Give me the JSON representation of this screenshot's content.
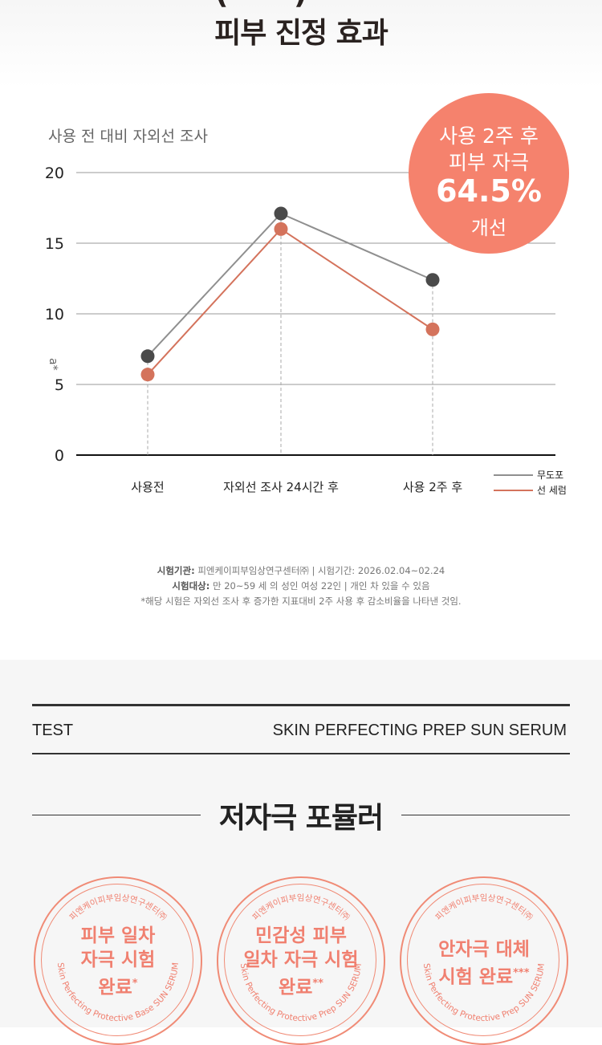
{
  "header": {
    "title": "피부 진정 효과",
    "cut_left": "(",
    "cut_right": ")"
  },
  "chart_data": {
    "type": "line",
    "title": "사용 전 대비 자외선 조사",
    "ylabel": "a*",
    "ylim": [
      0,
      20
    ],
    "yticks": [
      "0",
      "5",
      "10",
      "15",
      "20"
    ],
    "categories": [
      "사용전",
      "자외선 조사 24시간 후",
      "사용 2주 후"
    ],
    "series": [
      {
        "name": "무도포",
        "values": [
          7.0,
          17.1,
          12.4
        ],
        "color": "#8f8f8f",
        "marker": "#4a4a4a"
      },
      {
        "name": "선 세럼",
        "values": [
          5.7,
          16.0,
          8.9
        ],
        "color": "#d4735c",
        "marker": "#d4735c"
      }
    ],
    "grid": true,
    "legend": "bottom-right"
  },
  "badge": {
    "line1": "사용 2주 후",
    "line2": "피부 자극",
    "value": "64.5%",
    "line4": "개선"
  },
  "notes": {
    "org_label": "시험기관:",
    "org": " 피엔케이피부임상연구센터㈜ | 시험기간: 2026.02.04~02.24",
    "subject_label": "시험대상:",
    "subject": " 만 20~59 세 의 성인 여성 22인 | 개인 차 있을 수 있음",
    "footnote": "*해당 시험은 자외선 조사 후 증가한 지표대비 2주 사용 후 감소비율을 나타낸 것임."
  },
  "test_bar": {
    "left": "TEST",
    "right": "SKIN PERFECTING PREP SUN SERUM"
  },
  "formula": {
    "title": "저자극 포뮬러"
  },
  "stamps": [
    {
      "lines": [
        "피부 일차",
        "자극 시험",
        "완료"
      ],
      "mark": "*",
      "arc_top": "피엔케이피부임상연구센터㈜",
      "arc_bottom": "Skin Perfecting Protective Base SUN SERUM"
    },
    {
      "lines": [
        "민감성 피부",
        "일차 자극 시험",
        "완료"
      ],
      "mark": "**",
      "arc_top": "피엔케이피부임상연구센터㈜",
      "arc_bottom": "Skin Perfecting Protective Prep SUN SERUM"
    },
    {
      "lines": [
        "안자극 대체",
        "시험 완료"
      ],
      "mark": "***",
      "arc_top": "피엔케이피부임상연구센터㈜",
      "arc_bottom": "Skin Perfecting Protective Prep SUN SERUM"
    }
  ],
  "colors": {
    "accent": "#f5826d",
    "stamp": "#f08b76"
  }
}
